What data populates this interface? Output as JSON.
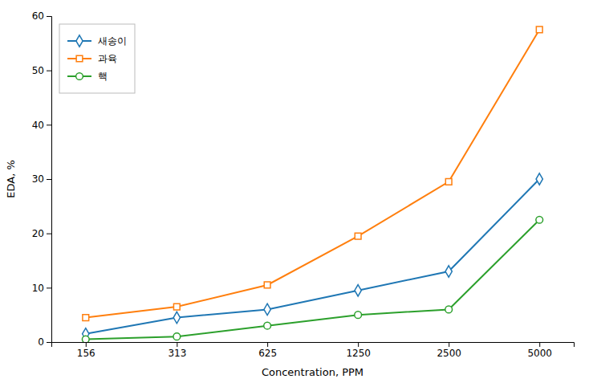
{
  "chart_data": {
    "type": "line",
    "x": [
      156,
      313,
      625,
      1250,
      2500,
      5000
    ],
    "series": [
      {
        "name": "새송이",
        "marker": "diamond",
        "values": [
          1.5,
          4.5,
          6.0,
          9.5,
          13.0,
          30.0
        ]
      },
      {
        "name": "과육",
        "marker": "square",
        "values": [
          4.5,
          6.5,
          10.5,
          19.5,
          29.5,
          57.5
        ]
      },
      {
        "name": "핵",
        "marker": "circle",
        "values": [
          0.5,
          1.0,
          3.0,
          5.0,
          6.0,
          22.5
        ]
      }
    ],
    "xlabel": "Concentration, PPM",
    "ylabel": "EDA, %",
    "xlim": [
      120,
      6500
    ],
    "xticks": [
      156,
      313,
      625,
      1250,
      2500,
      5000
    ],
    "ylim": [
      0,
      60
    ],
    "yticks": [
      0,
      10,
      20,
      30,
      40,
      50,
      60
    ],
    "log": "x",
    "grid": false,
    "legend": "upper left"
  }
}
